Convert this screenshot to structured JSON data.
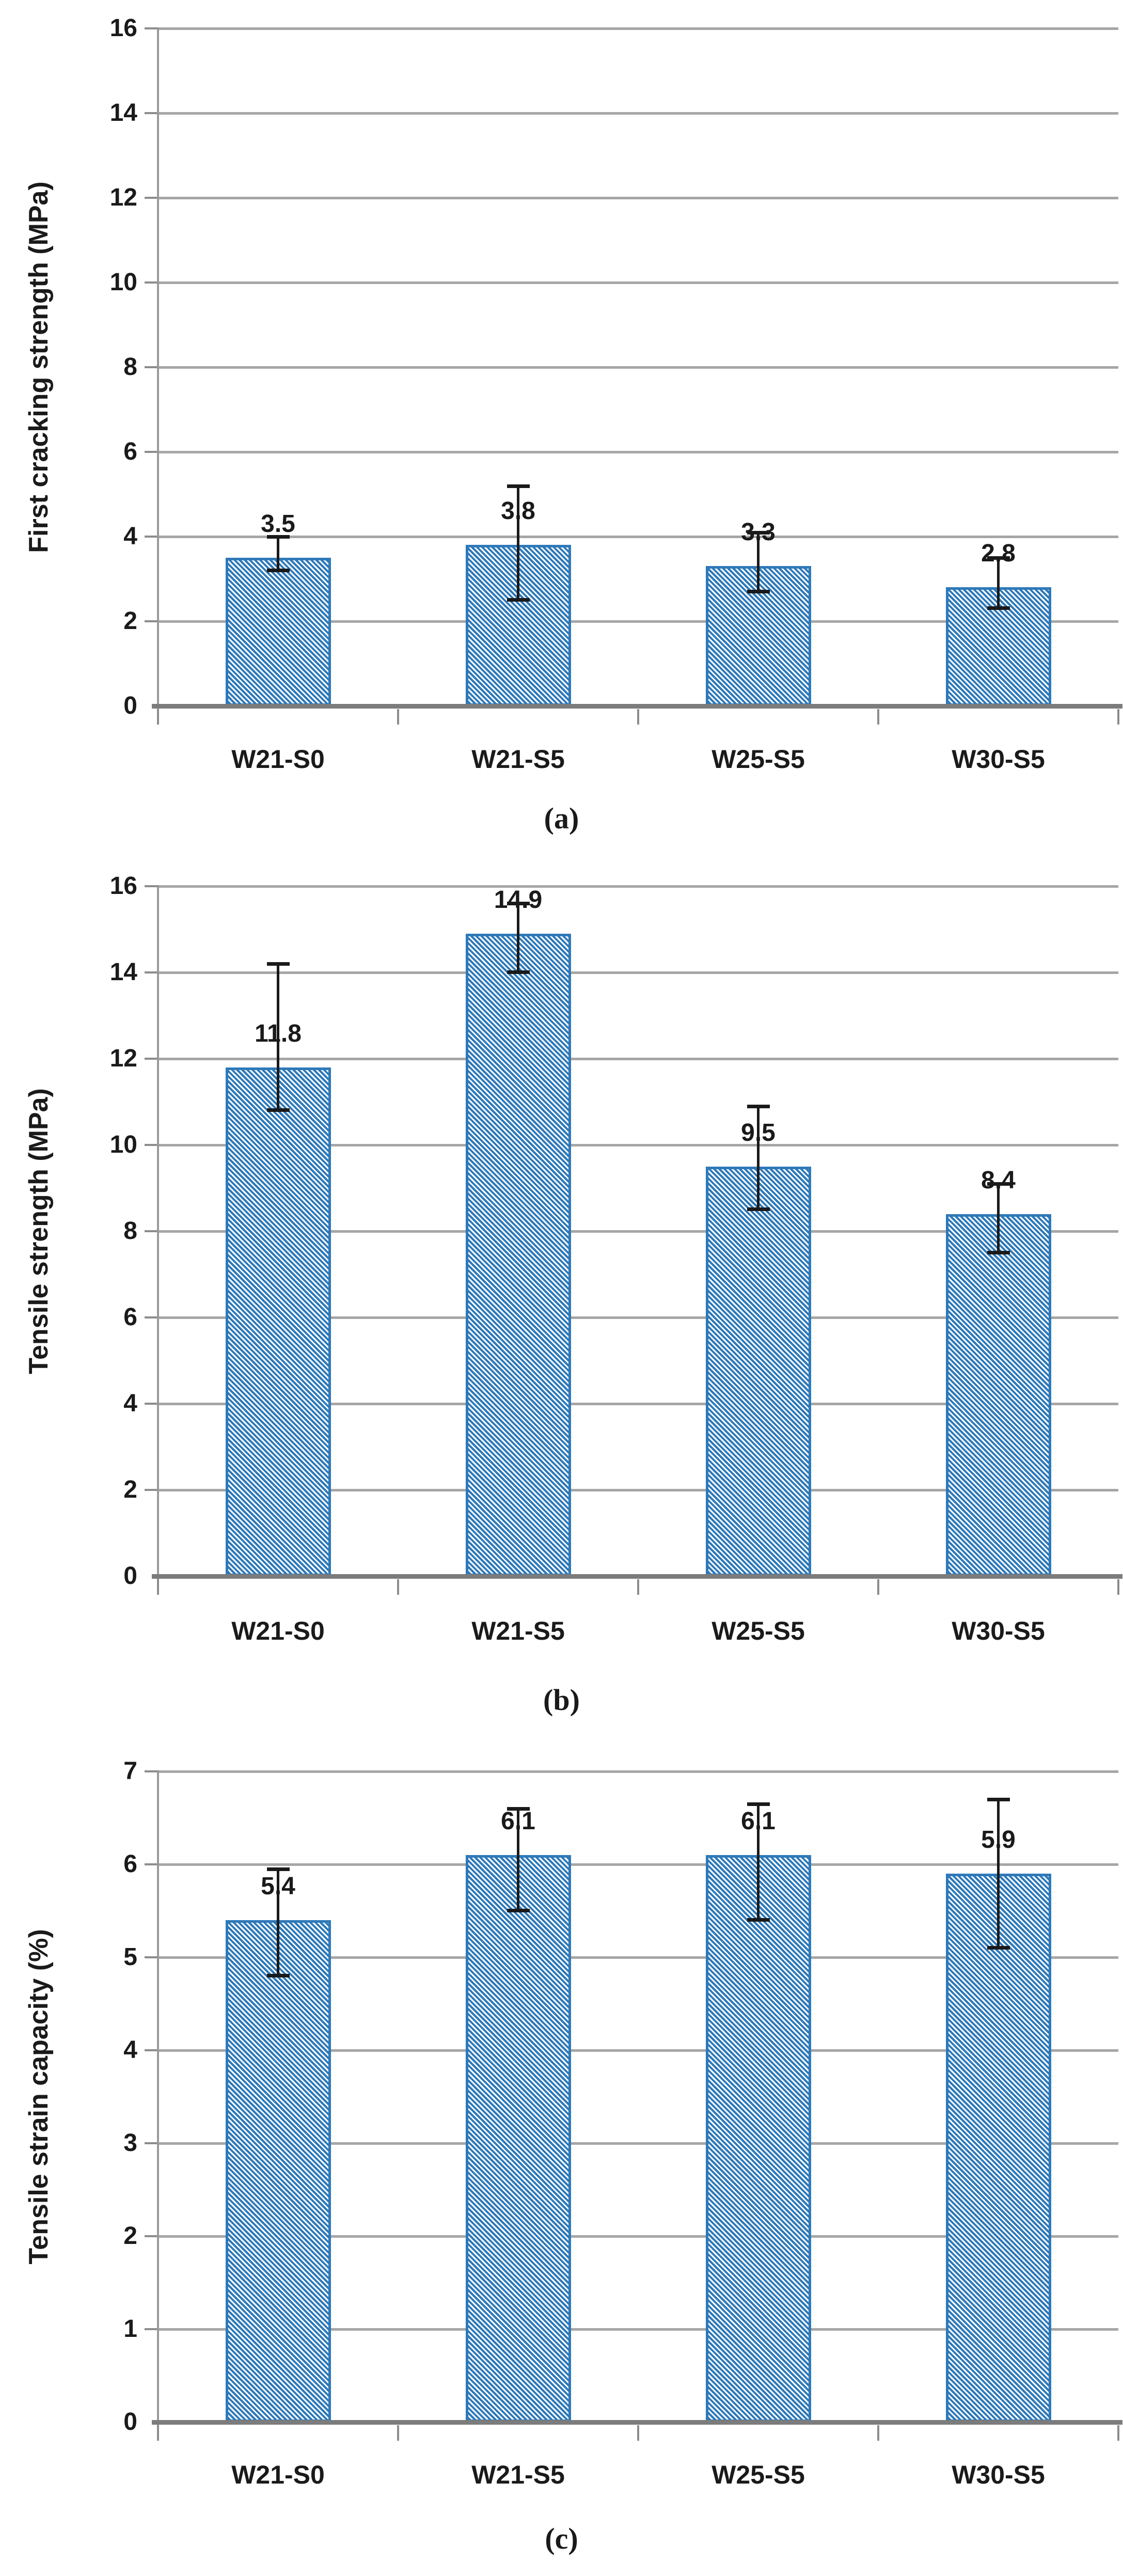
{
  "style": {
    "bar_fill_color": "#2E79B9",
    "bar_hatch": "diagonal-stripes-45deg",
    "hatch_background": "#FFFFFF",
    "gridline_color": "#A6A6A6",
    "axis_line_color": "#7C7C7C",
    "tick_mark_color": "#8C8C8C",
    "error_bar_color": "#1A1A1A",
    "text_color": "#1A1A1A",
    "background_color": "#FFFFFF"
  },
  "chart_data": [
    {
      "type": "bar",
      "panel": "a",
      "caption": "(a)",
      "title": "",
      "xlabel": "",
      "ylabel": "First cracking strength (MPa)",
      "ylim": [
        0,
        16
      ],
      "ytick_step": 2,
      "ytick_labels": [
        "0",
        "2",
        "4",
        "6",
        "8",
        "10",
        "12",
        "14",
        "16"
      ],
      "grid": true,
      "legend": false,
      "categories": [
        "W21-S0",
        "W21-S5",
        "W25-S5",
        "W30-S5"
      ],
      "values": [
        3.5,
        3.8,
        3.3,
        2.8
      ],
      "data_labels": [
        "3.5",
        "3.8",
        "3.3",
        "2.8"
      ],
      "error_plus": [
        0.5,
        1.4,
        0.8,
        0.7
      ],
      "error_minus": [
        0.3,
        1.3,
        0.6,
        0.5
      ]
    },
    {
      "type": "bar",
      "panel": "b",
      "caption": "(b)",
      "title": "",
      "xlabel": "",
      "ylabel": "Tensile strength (MPa)",
      "ylim": [
        0,
        16
      ],
      "ytick_step": 2,
      "ytick_labels": [
        "0",
        "2",
        "4",
        "6",
        "8",
        "10",
        "12",
        "14",
        "16"
      ],
      "grid": true,
      "legend": false,
      "categories": [
        "W21-S0",
        "W21-S5",
        "W25-S5",
        "W30-S5"
      ],
      "values": [
        11.8,
        14.9,
        9.5,
        8.4
      ],
      "data_labels": [
        "11.8",
        "14.9",
        "9.5",
        "8.4"
      ],
      "error_plus": [
        2.4,
        0.7,
        1.4,
        0.7
      ],
      "error_minus": [
        1.0,
        0.9,
        1.0,
        0.9
      ]
    },
    {
      "type": "bar",
      "panel": "c",
      "caption": "(c)",
      "title": "",
      "xlabel": "",
      "ylabel": "Tensile strain capacity (%)",
      "ylim": [
        0,
        7
      ],
      "ytick_step": 1,
      "ytick_labels": [
        "0",
        "1",
        "2",
        "3",
        "4",
        "5",
        "6",
        "7"
      ],
      "grid": true,
      "legend": false,
      "categories": [
        "W21-S0",
        "W21-S5",
        "W25-S5",
        "W30-S5"
      ],
      "values": [
        5.4,
        6.1,
        6.1,
        5.9
      ],
      "data_labels": [
        "5.4",
        "6.1",
        "6.1",
        "5.9"
      ],
      "error_plus": [
        0.55,
        0.5,
        0.55,
        0.8
      ],
      "error_minus": [
        0.6,
        0.6,
        0.7,
        0.8
      ]
    }
  ]
}
